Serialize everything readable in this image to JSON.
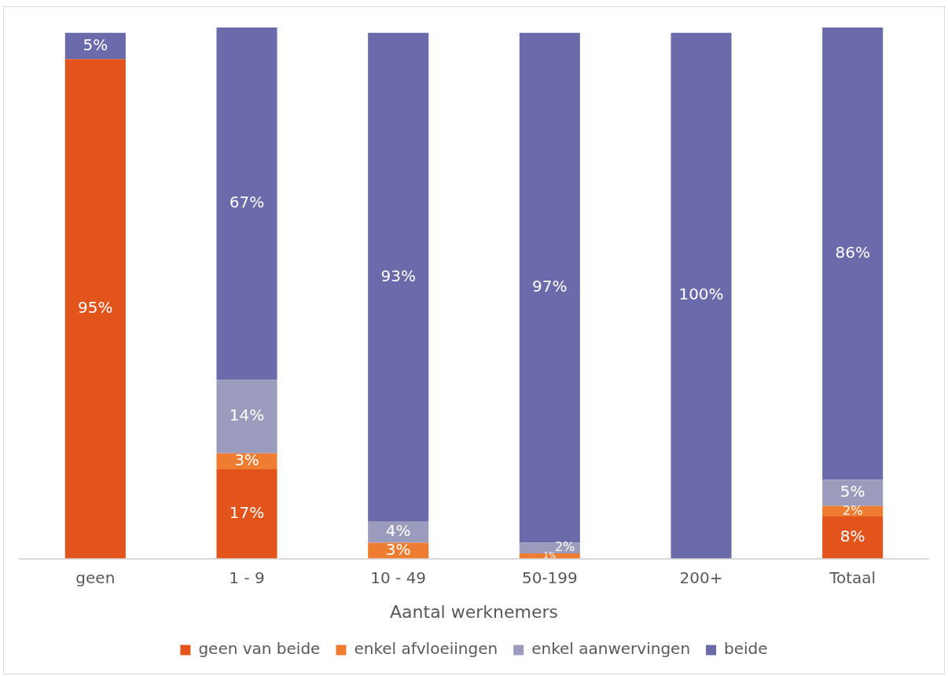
{
  "chart_data": {
    "type": "bar",
    "stacked": true,
    "xlabel": "Aantal werknemers",
    "legend": "bottom",
    "grid": false,
    "tick_labels": "x",
    "categories": [
      "geen",
      "1 - 9",
      "10 - 49",
      "50-199",
      "200+",
      "Totaal"
    ],
    "series": [
      {
        "name": "geen van beide",
        "color": "#e2541c",
        "values": [
          95,
          17,
          0,
          0,
          0,
          8
        ],
        "value_labels": [
          "95%",
          "17%",
          null,
          null,
          null,
          "8%"
        ]
      },
      {
        "name": "enkel afvloeiingen",
        "color": "#ee7d31",
        "values": [
          0,
          3,
          3,
          1,
          0,
          2
        ],
        "value_labels": [
          null,
          "3%",
          "3%",
          "1%",
          null,
          "2%"
        ]
      },
      {
        "name": "enkel aanwervingen",
        "color": "#9b9bbd",
        "values": [
          0,
          14,
          4,
          2,
          0,
          5
        ],
        "value_labels": [
          null,
          "14%",
          "4%",
          "2%",
          null,
          "5%"
        ]
      },
      {
        "name": "beide",
        "color": "#6b6bab",
        "values": [
          5,
          67,
          93,
          97,
          100,
          86
        ],
        "value_labels": [
          "5%",
          "67%",
          "93%",
          "97%",
          "100%",
          "86%"
        ]
      }
    ]
  }
}
